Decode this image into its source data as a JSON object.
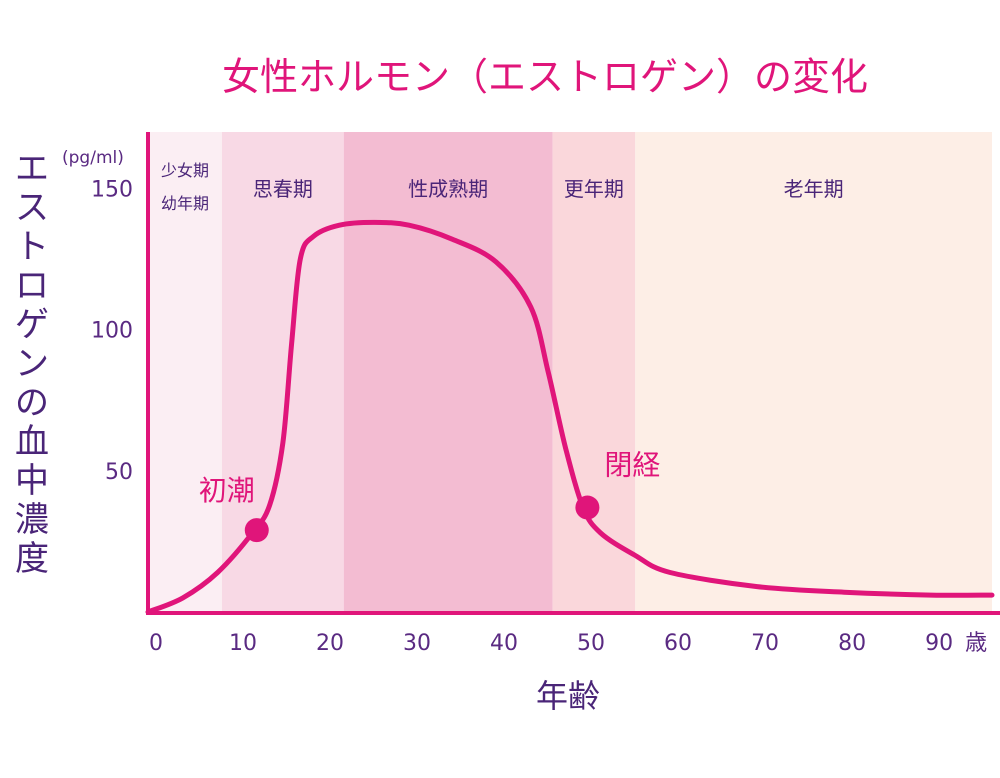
{
  "chart_data": {
    "type": "line",
    "title": "女性ホルモン（エストロゲン）の変化",
    "xlabel": "年齢",
    "ylabel": "エストロゲンの血中濃度",
    "y_unit": "(pg/ml)",
    "x_unit": "歳",
    "xlim": [
      0,
      97
    ],
    "ylim": [
      0,
      170
    ],
    "x_ticks": [
      0,
      10,
      20,
      30,
      40,
      50,
      60,
      70,
      80,
      90
    ],
    "y_ticks": [
      50,
      100,
      150
    ],
    "grid": false,
    "series": [
      {
        "color": "#e0157a",
        "points": [
          [
            0,
            0
          ],
          [
            4,
            5
          ],
          [
            8,
            14
          ],
          [
            12,
            28
          ],
          [
            14,
            38
          ],
          [
            15.5,
            60
          ],
          [
            16.5,
            95
          ],
          [
            17.5,
            125
          ],
          [
            19,
            133
          ],
          [
            22,
            137
          ],
          [
            26,
            138
          ],
          [
            30,
            137
          ],
          [
            35,
            132
          ],
          [
            40,
            124
          ],
          [
            44,
            108
          ],
          [
            46,
            85
          ],
          [
            48,
            58
          ],
          [
            50,
            37
          ],
          [
            52,
            28
          ],
          [
            56,
            20
          ],
          [
            60,
            14
          ],
          [
            70,
            9
          ],
          [
            80,
            7
          ],
          [
            90,
            6
          ],
          [
            97,
            6
          ]
        ]
      }
    ],
    "phases": [
      {
        "label_lines": [
          "少女期",
          "幼年期"
        ],
        "start": 0,
        "end": 8.5,
        "color": "#fbeef3"
      },
      {
        "label_lines": [
          "思春期"
        ],
        "start": 8.5,
        "end": 22.5,
        "color": "#f8d9e5"
      },
      {
        "label_lines": [
          "性成熟期"
        ],
        "start": 22.5,
        "end": 46.5,
        "color": "#f3bcd2"
      },
      {
        "label_lines": [
          "更年期"
        ],
        "start": 46.5,
        "end": 56,
        "color": "#fad7db"
      },
      {
        "label_lines": [
          "老年期"
        ],
        "start": 56,
        "end": 97,
        "color": "#fdeee6"
      }
    ],
    "events": [
      {
        "label": "初潮",
        "x": 12.5,
        "y": 29
      },
      {
        "label": "閉経",
        "x": 50.5,
        "y": 37
      }
    ]
  }
}
